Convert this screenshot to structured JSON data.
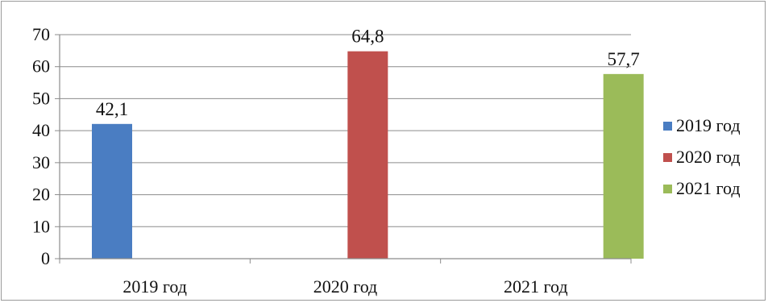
{
  "chart_data": {
    "type": "bar",
    "title": "",
    "xlabel": "",
    "ylabel": "",
    "categories": [
      "2019 год",
      "2020 год",
      "2021 год"
    ],
    "values": [
      42.1,
      64.8,
      57.7
    ],
    "value_labels": [
      "42,1",
      "64,8",
      "57,7"
    ],
    "series": [
      {
        "name": "2019 год",
        "color": "#4a7dc2"
      },
      {
        "name": "2020 год",
        "color": "#c0504d"
      },
      {
        "name": "2021 год",
        "color": "#9bbb59"
      }
    ],
    "ylim": [
      0,
      70
    ],
    "yticks": [
      0,
      10,
      20,
      30,
      40,
      50,
      60,
      70
    ],
    "grid": true,
    "legend_position": "right"
  }
}
